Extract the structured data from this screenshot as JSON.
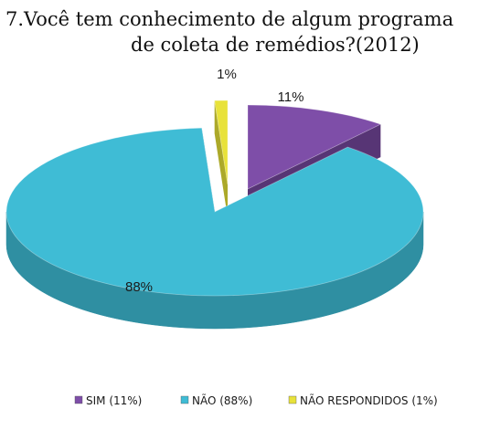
{
  "chart_data": {
    "type": "pie",
    "title_line1": "7.Você tem conhecimento de algum programa",
    "title_line2": "de coleta de remédios?(2012)",
    "slices": [
      {
        "name": "SIM",
        "value": 11,
        "label": "11%",
        "legend": "SIM (11%)",
        "color": "#7e4ea8",
        "side_color": "#4e2a6e",
        "exploded": true
      },
      {
        "name": "NÃO",
        "value": 88,
        "label": "88%",
        "legend": "NÃO (88%)",
        "color": "#3fbcd5",
        "side_color": "#2f8fa2",
        "exploded": false
      },
      {
        "name": "NÃO RESPONDIDOS",
        "value": 1,
        "label": "1%",
        "legend": "NÃO RESPONDIDOS (1%)",
        "color": "#e8e23a",
        "side_color": "#a8a41e",
        "exploded": true
      }
    ],
    "style": "3d-exploded",
    "legend_position": "bottom"
  }
}
